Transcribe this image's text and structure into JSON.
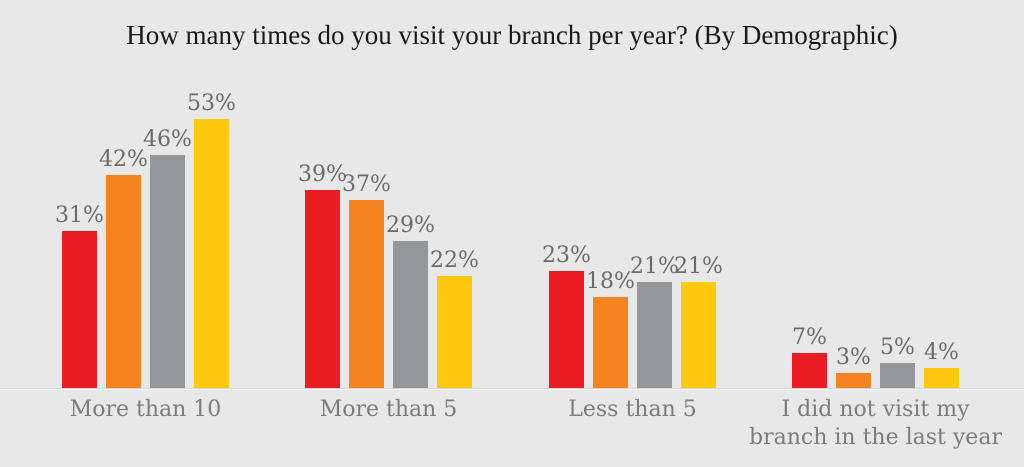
{
  "title": "How many times do you visit your branch per year? (By Demographic)",
  "chart_data": {
    "type": "bar",
    "title": "How many times do you visit your branch per year? (By Demographic)",
    "categories": [
      "More than 10",
      "More than 5",
      "Less than 5",
      "I did not visit my branch in the last year"
    ],
    "category_label_lines": [
      [
        "More than 10"
      ],
      [
        "More than 5"
      ],
      [
        "Less than 5"
      ],
      [
        "I did not visit my",
        "branch in the last year"
      ]
    ],
    "series": [
      {
        "name": "series-red",
        "color": "#EC1C24",
        "values": [
          31,
          39,
          23,
          7
        ]
      },
      {
        "name": "series-orange",
        "color": "#F5831F",
        "values": [
          42,
          37,
          18,
          3
        ]
      },
      {
        "name": "series-gray",
        "color": "#95979A",
        "values": [
          46,
          29,
          21,
          5
        ]
      },
      {
        "name": "series-yellow",
        "color": "#FFC90E",
        "values": [
          53,
          22,
          21,
          4
        ]
      }
    ],
    "data_labels": true,
    "value_suffix": "%",
    "xlabel": "",
    "ylabel": "",
    "ylim": [
      0,
      60
    ],
    "grid": false,
    "legend": "none"
  },
  "colors": {
    "background": "#E8E8E8",
    "axis_line": "#DADADA",
    "axis_line_highlight": "#F2F2F2",
    "title_text": "#1A1A1A",
    "data_label_text": "#6B6B6B",
    "category_label_text": "#7C7C7C"
  }
}
